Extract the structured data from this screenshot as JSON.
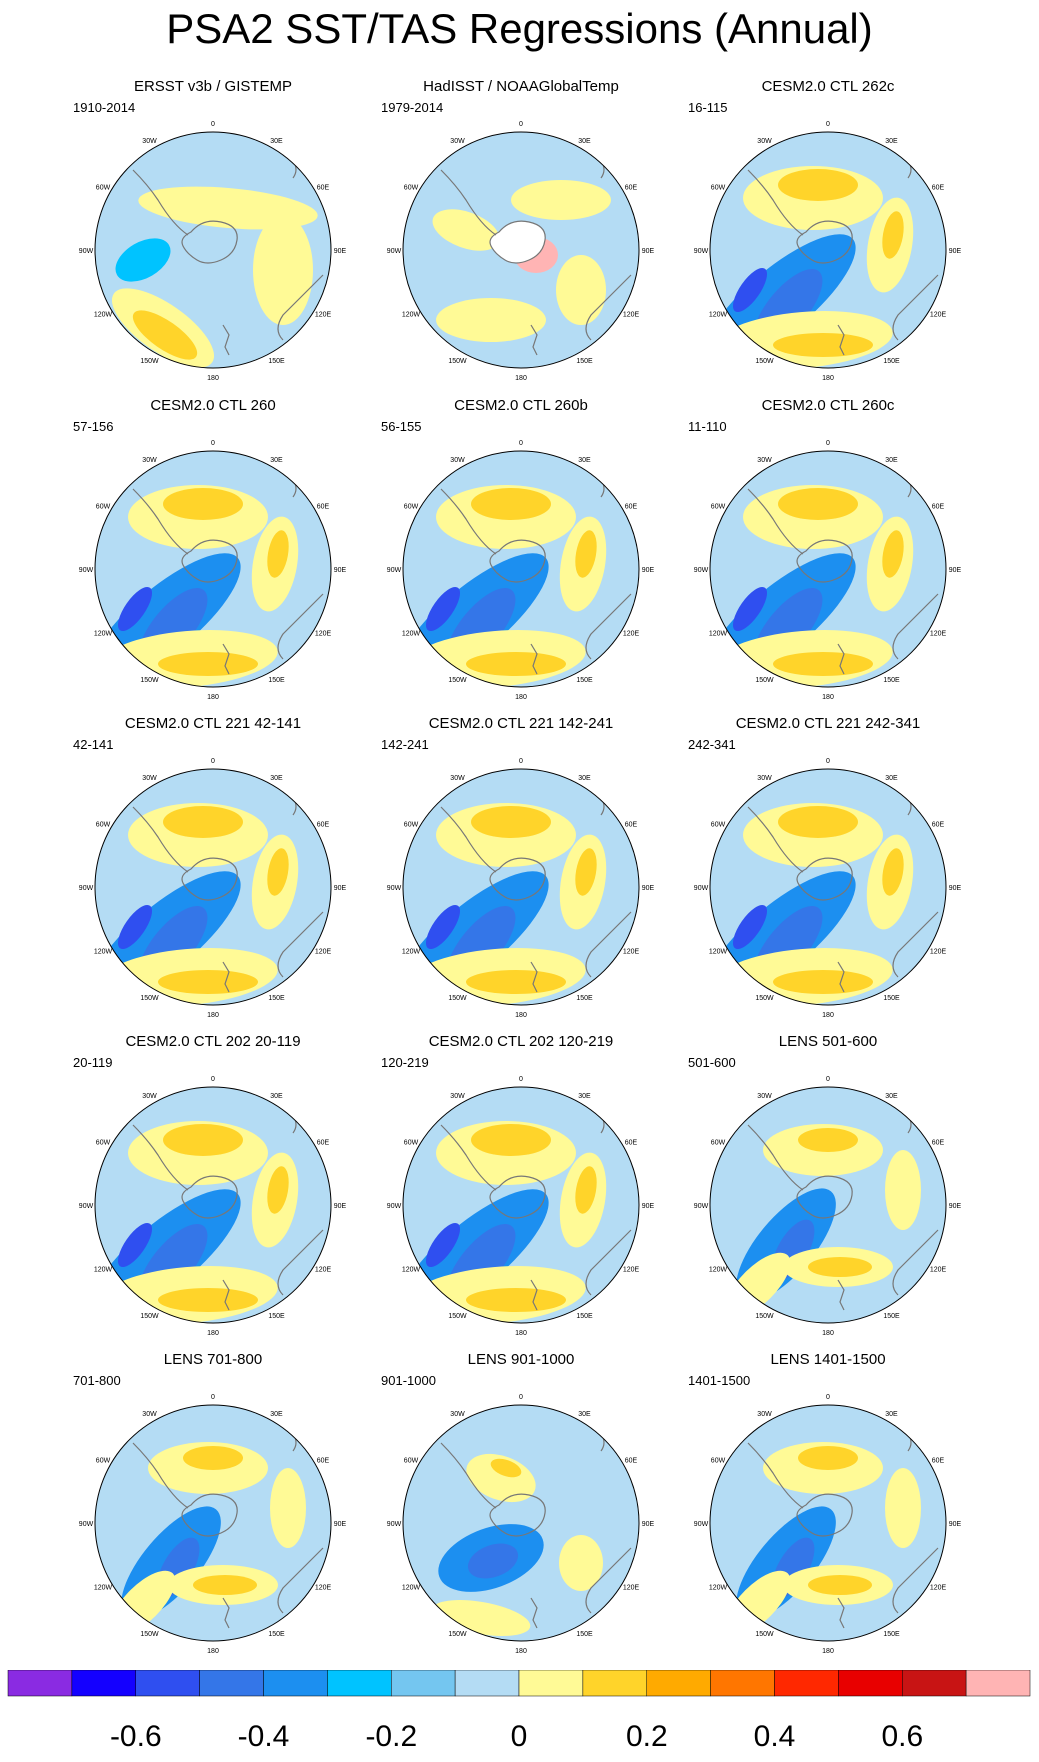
{
  "title": "PSA2 SST/TAS Regressions (Annual)",
  "longitude_labels": [
    "0",
    "30E",
    "60E",
    "90E",
    "120E",
    "150E",
    "180",
    "150W",
    "120W",
    "90W",
    "60W",
    "30W"
  ],
  "panels": [
    {
      "title": "ERSST v3b / GISTEMP",
      "period": "1910-2014",
      "variant": "obs1"
    },
    {
      "title": "HadISST / NOAAGlobalTemp",
      "period": "1979-2014",
      "variant": "obs2"
    },
    {
      "title": "CESM2.0 CTL 262c",
      "period": "16-115",
      "variant": "model"
    },
    {
      "title": "CESM2.0 CTL 260",
      "period": "57-156",
      "variant": "model"
    },
    {
      "title": "CESM2.0 CTL 260b",
      "period": "56-155",
      "variant": "model"
    },
    {
      "title": "CESM2.0 CTL 260c",
      "period": "11-110",
      "variant": "model"
    },
    {
      "title": "CESM2.0 CTL 221 42-141",
      "period": "42-141",
      "variant": "model"
    },
    {
      "title": "CESM2.0 CTL 221 142-241",
      "period": "142-241",
      "variant": "model"
    },
    {
      "title": "CESM2.0 CTL 221 242-341",
      "period": "242-341",
      "variant": "model"
    },
    {
      "title": "CESM2.0 CTL 202 20-119",
      "period": "20-119",
      "variant": "model"
    },
    {
      "title": "CESM2.0 CTL 202 120-219",
      "period": "120-219",
      "variant": "model"
    },
    {
      "title": "LENS 501-600",
      "period": "501-600",
      "variant": "lens"
    },
    {
      "title": "LENS 701-800",
      "period": "701-800",
      "variant": "lens"
    },
    {
      "title": "LENS 901-1000",
      "period": "901-1000",
      "variant": "lens2"
    },
    {
      "title": "LENS 1401-1500",
      "period": "1401-1500",
      "variant": "lens"
    }
  ],
  "colorbar": {
    "colors": [
      "#8a2be2",
      "#1400ff",
      "#2f4ff0",
      "#3476e8",
      "#1c8ff0",
      "#00c3ff",
      "#74c6f0",
      "#b4dcf4",
      "#fffa96",
      "#ffd42a",
      "#ffaa00",
      "#ff7600",
      "#ff2800",
      "#e80000",
      "#c81414",
      "#ffb4b4"
    ],
    "labels": [
      "-0.6",
      "-0.4",
      "-0.2",
      "0",
      "0.2",
      "0.4",
      "0.6"
    ]
  }
}
